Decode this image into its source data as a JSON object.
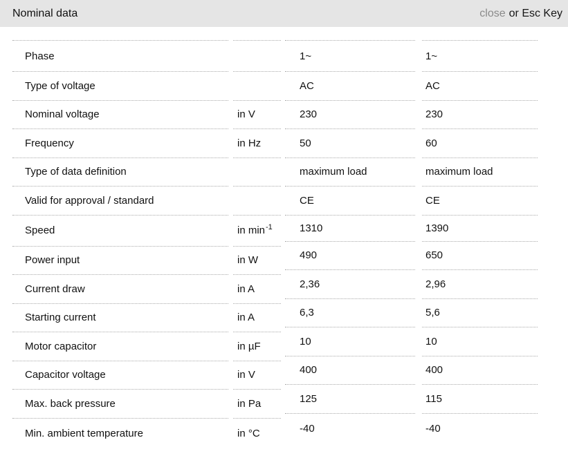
{
  "header": {
    "title": "Nominal data",
    "close_label": "close",
    "close_suffix": "or Esc Key"
  },
  "colors": {
    "header_bg": "#e5e5e5",
    "close_link": "#8a8a8a",
    "divider": "#a9a9a9",
    "text": "#111111"
  },
  "table": {
    "rows": [
      {
        "label": "Phase",
        "unit": "",
        "unit_sup": "",
        "v1": "1~",
        "v2": "1~"
      },
      {
        "label": "Type of voltage",
        "unit": "",
        "unit_sup": "",
        "v1": "AC",
        "v2": "AC"
      },
      {
        "label": "Nominal voltage",
        "unit": "in V",
        "unit_sup": "",
        "v1": "230",
        "v2": "230"
      },
      {
        "label": "Frequency",
        "unit": "in Hz",
        "unit_sup": "",
        "v1": "50",
        "v2": "60"
      },
      {
        "label": "Type of data definition",
        "unit": "",
        "unit_sup": "",
        "v1": "maximum load",
        "v2": "maximum load"
      },
      {
        "label": "Valid for approval / standard",
        "unit": "",
        "unit_sup": "",
        "v1": "CE",
        "v2": "CE"
      },
      {
        "label": "Speed",
        "unit": "in min",
        "unit_sup": "-1",
        "v1": "1310",
        "v2": "1390"
      },
      {
        "label": "Power input",
        "unit": "in W",
        "unit_sup": "",
        "v1": "490",
        "v2": "650"
      },
      {
        "label": "Current draw",
        "unit": "in A",
        "unit_sup": "",
        "v1": "2,36",
        "v2": "2,96"
      },
      {
        "label": "Starting current",
        "unit": "in A",
        "unit_sup": "",
        "v1": "6,3",
        "v2": "5,6"
      },
      {
        "label": "Motor capacitor",
        "unit": "in µF",
        "unit_sup": "",
        "v1": "10",
        "v2": "10"
      },
      {
        "label": "Capacitor voltage",
        "unit": "in V",
        "unit_sup": "",
        "v1": "400",
        "v2": "400"
      },
      {
        "label": "Max. back pressure",
        "unit": "in Pa",
        "unit_sup": "",
        "v1": "125",
        "v2": "115"
      },
      {
        "label": "Min. ambient temperature",
        "unit": "in °C",
        "unit_sup": "",
        "v1": "-40",
        "v2": "-40"
      }
    ]
  }
}
